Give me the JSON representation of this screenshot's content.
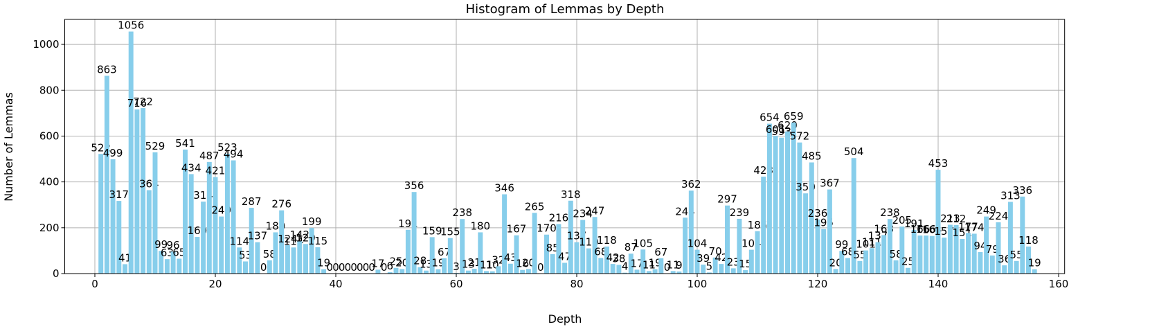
{
  "chart_data": {
    "type": "bar",
    "title": "Histogram of Lemmas by Depth",
    "x_label": "Depth",
    "y_label": "Number of Lemmas",
    "color": "#87ceeb",
    "grid": true,
    "x": [
      1,
      2,
      3,
      4,
      5,
      6,
      7,
      8,
      9,
      10,
      11,
      12,
      13,
      14,
      15,
      16,
      17,
      18,
      19,
      20,
      21,
      22,
      23,
      24,
      25,
      26,
      27,
      28,
      29,
      30,
      31,
      32,
      33,
      34,
      35,
      36,
      37,
      38,
      39,
      40,
      41,
      42,
      43,
      44,
      45,
      46,
      47,
      48,
      49,
      50,
      51,
      52,
      53,
      54,
      55,
      56,
      57,
      58,
      59,
      60,
      61,
      62,
      63,
      64,
      65,
      66,
      67,
      68,
      69,
      70,
      71,
      72,
      73,
      74,
      75,
      76,
      77,
      78,
      79,
      80,
      81,
      82,
      83,
      84,
      85,
      86,
      87,
      88,
      89,
      90,
      91,
      92,
      93,
      94,
      95,
      96,
      97,
      98,
      99,
      100,
      101,
      102,
      103,
      104,
      105,
      106,
      107,
      108,
      109,
      110,
      111,
      112,
      113,
      114,
      115,
      116,
      117,
      118,
      119,
      120,
      121,
      122,
      123,
      124,
      125,
      126,
      127,
      128,
      129,
      130,
      131,
      132,
      133,
      134,
      135,
      136,
      137,
      138,
      139,
      140,
      141,
      142,
      143,
      144,
      145,
      146,
      147,
      148,
      149,
      150,
      151,
      152,
      153,
      154,
      155,
      156
    ],
    "values": [
      522,
      863,
      499,
      317,
      41,
      1056,
      716,
      722,
      364,
      529,
      99,
      63,
      96,
      65,
      541,
      434,
      160,
      314,
      487,
      421,
      249,
      523,
      494,
      114,
      53,
      287,
      137,
      0,
      58,
      180,
      276,
      124,
      114,
      142,
      129,
      199,
      115,
      19,
      0,
      0,
      0,
      0,
      0,
      0,
      0,
      0,
      17,
      0,
      6,
      25,
      20,
      191,
      356,
      28,
      13,
      159,
      19,
      67,
      155,
      3,
      238,
      13,
      21,
      180,
      11,
      10,
      32,
      346,
      43,
      167,
      16,
      20,
      265,
      0,
      170,
      85,
      216,
      47,
      318,
      137,
      234,
      110,
      247,
      68,
      118,
      42,
      38,
      4,
      87,
      17,
      105,
      11,
      19,
      67,
      0,
      11,
      9,
      244,
      362,
      104,
      39,
      5,
      70,
      42,
      297,
      23,
      239,
      15,
      104,
      185,
      423,
      654,
      601,
      593,
      620,
      659,
      572,
      350,
      485,
      236,
      195,
      367,
      20,
      99,
      68,
      504,
      55,
      101,
      111,
      137,
      168,
      238,
      58,
      205,
      25,
      191,
      166,
      166,
      164,
      453,
      157,
      213,
      212,
      151,
      177,
      174,
      94,
      249,
      79,
      224,
      36,
      313,
      55,
      336,
      118,
      19
    ],
    "xlim": [
      -5,
      161
    ],
    "xticks": [
      0,
      20,
      40,
      60,
      80,
      100,
      120,
      140,
      160
    ],
    "ylim": [
      0,
      1109
    ],
    "yticks": [
      0,
      200,
      400,
      600,
      800,
      1000
    ]
  }
}
